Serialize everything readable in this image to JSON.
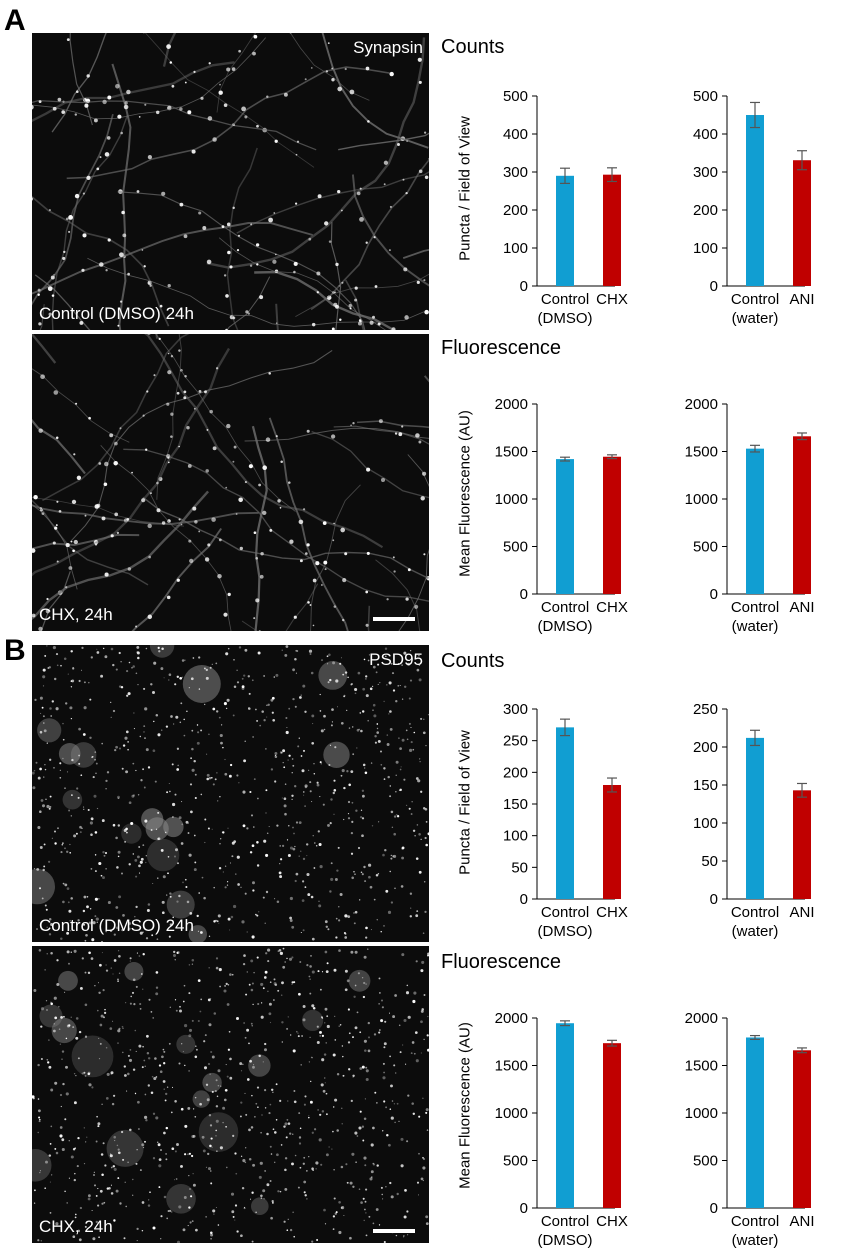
{
  "panels": [
    {
      "letter": "A",
      "stain": "Synapsin",
      "image_labels": [
        "Control (DMSO) 24h",
        "CHX, 24h"
      ],
      "sections": [
        "Counts",
        "Fluorescence"
      ]
    },
    {
      "letter": "B",
      "stain": "PSD95",
      "image_labels": [
        "Control (DMSO) 24h",
        "CHX, 24h"
      ],
      "sections": [
        "Counts",
        "Fluorescence"
      ]
    }
  ],
  "colors": {
    "control": "#119ed2",
    "treatment": "#c00000",
    "error_bar": "#555555",
    "axis": "#000000"
  },
  "chart_data": [
    {
      "type": "bar",
      "panel": "A",
      "section": "Counts",
      "ylabel": "Puncta / Field of View",
      "categories": [
        [
          "Control",
          "(DMSO)"
        ],
        [
          "CHX"
        ]
      ],
      "values": [
        290,
        293
      ],
      "errors": [
        20,
        18
      ],
      "ylim": [
        0,
        500
      ],
      "yticks": [
        0,
        100,
        200,
        300,
        400,
        500
      ]
    },
    {
      "type": "bar",
      "panel": "A",
      "section": "Counts",
      "ylabel": "",
      "categories": [
        [
          "Control",
          "(water)"
        ],
        [
          "ANI"
        ]
      ],
      "values": [
        450,
        331
      ],
      "errors": [
        33,
        25
      ],
      "ylim": [
        0,
        500
      ],
      "yticks": [
        0,
        100,
        200,
        300,
        400,
        500
      ]
    },
    {
      "type": "bar",
      "panel": "A",
      "section": "Fluorescence",
      "ylabel": "Mean Fluorescence (AU)",
      "categories": [
        [
          "Control",
          "(DMSO)"
        ],
        [
          "CHX"
        ]
      ],
      "values": [
        1420,
        1445
      ],
      "errors": [
        20,
        20
      ],
      "ylim": [
        0,
        2000
      ],
      "yticks": [
        0,
        500,
        1000,
        1500,
        2000
      ]
    },
    {
      "type": "bar",
      "panel": "A",
      "section": "Fluorescence",
      "ylabel": "",
      "categories": [
        [
          "Control",
          "(water)"
        ],
        [
          "ANI"
        ]
      ],
      "values": [
        1530,
        1660
      ],
      "errors": [
        35,
        35
      ],
      "ylim": [
        0,
        2000
      ],
      "yticks": [
        0,
        500,
        1000,
        1500,
        2000
      ]
    },
    {
      "type": "bar",
      "panel": "B",
      "section": "Counts",
      "ylabel": "Puncta / Field of View",
      "categories": [
        [
          "Control",
          "(DMSO)"
        ],
        [
          "CHX"
        ]
      ],
      "values": [
        271,
        180
      ],
      "errors": [
        13,
        11
      ],
      "ylim": [
        0,
        300
      ],
      "yticks": [
        0,
        50,
        100,
        150,
        200,
        250,
        300
      ]
    },
    {
      "type": "bar",
      "panel": "B",
      "section": "Counts",
      "ylabel": "",
      "categories": [
        [
          "Control",
          "(water)"
        ],
        [
          "ANI"
        ]
      ],
      "values": [
        212,
        143
      ],
      "errors": [
        10,
        9
      ],
      "ylim": [
        0,
        250
      ],
      "yticks": [
        0,
        50,
        100,
        150,
        200,
        250
      ]
    },
    {
      "type": "bar",
      "panel": "B",
      "section": "Fluorescence",
      "ylabel": "Mean Fluorescence (AU)",
      "categories": [
        [
          "Control",
          "(DMSO)"
        ],
        [
          "CHX"
        ]
      ],
      "values": [
        1945,
        1735
      ],
      "errors": [
        25,
        30
      ],
      "ylim": [
        0,
        2000
      ],
      "yticks": [
        0,
        500,
        1000,
        1500,
        2000
      ]
    },
    {
      "type": "bar",
      "panel": "B",
      "section": "Fluorescence",
      "ylabel": "",
      "categories": [
        [
          "Control",
          "(water)"
        ],
        [
          "ANI"
        ]
      ],
      "values": [
        1795,
        1660
      ],
      "errors": [
        20,
        25
      ],
      "ylim": [
        0,
        2000
      ],
      "yticks": [
        0,
        500,
        1000,
        1500,
        2000
      ]
    }
  ]
}
